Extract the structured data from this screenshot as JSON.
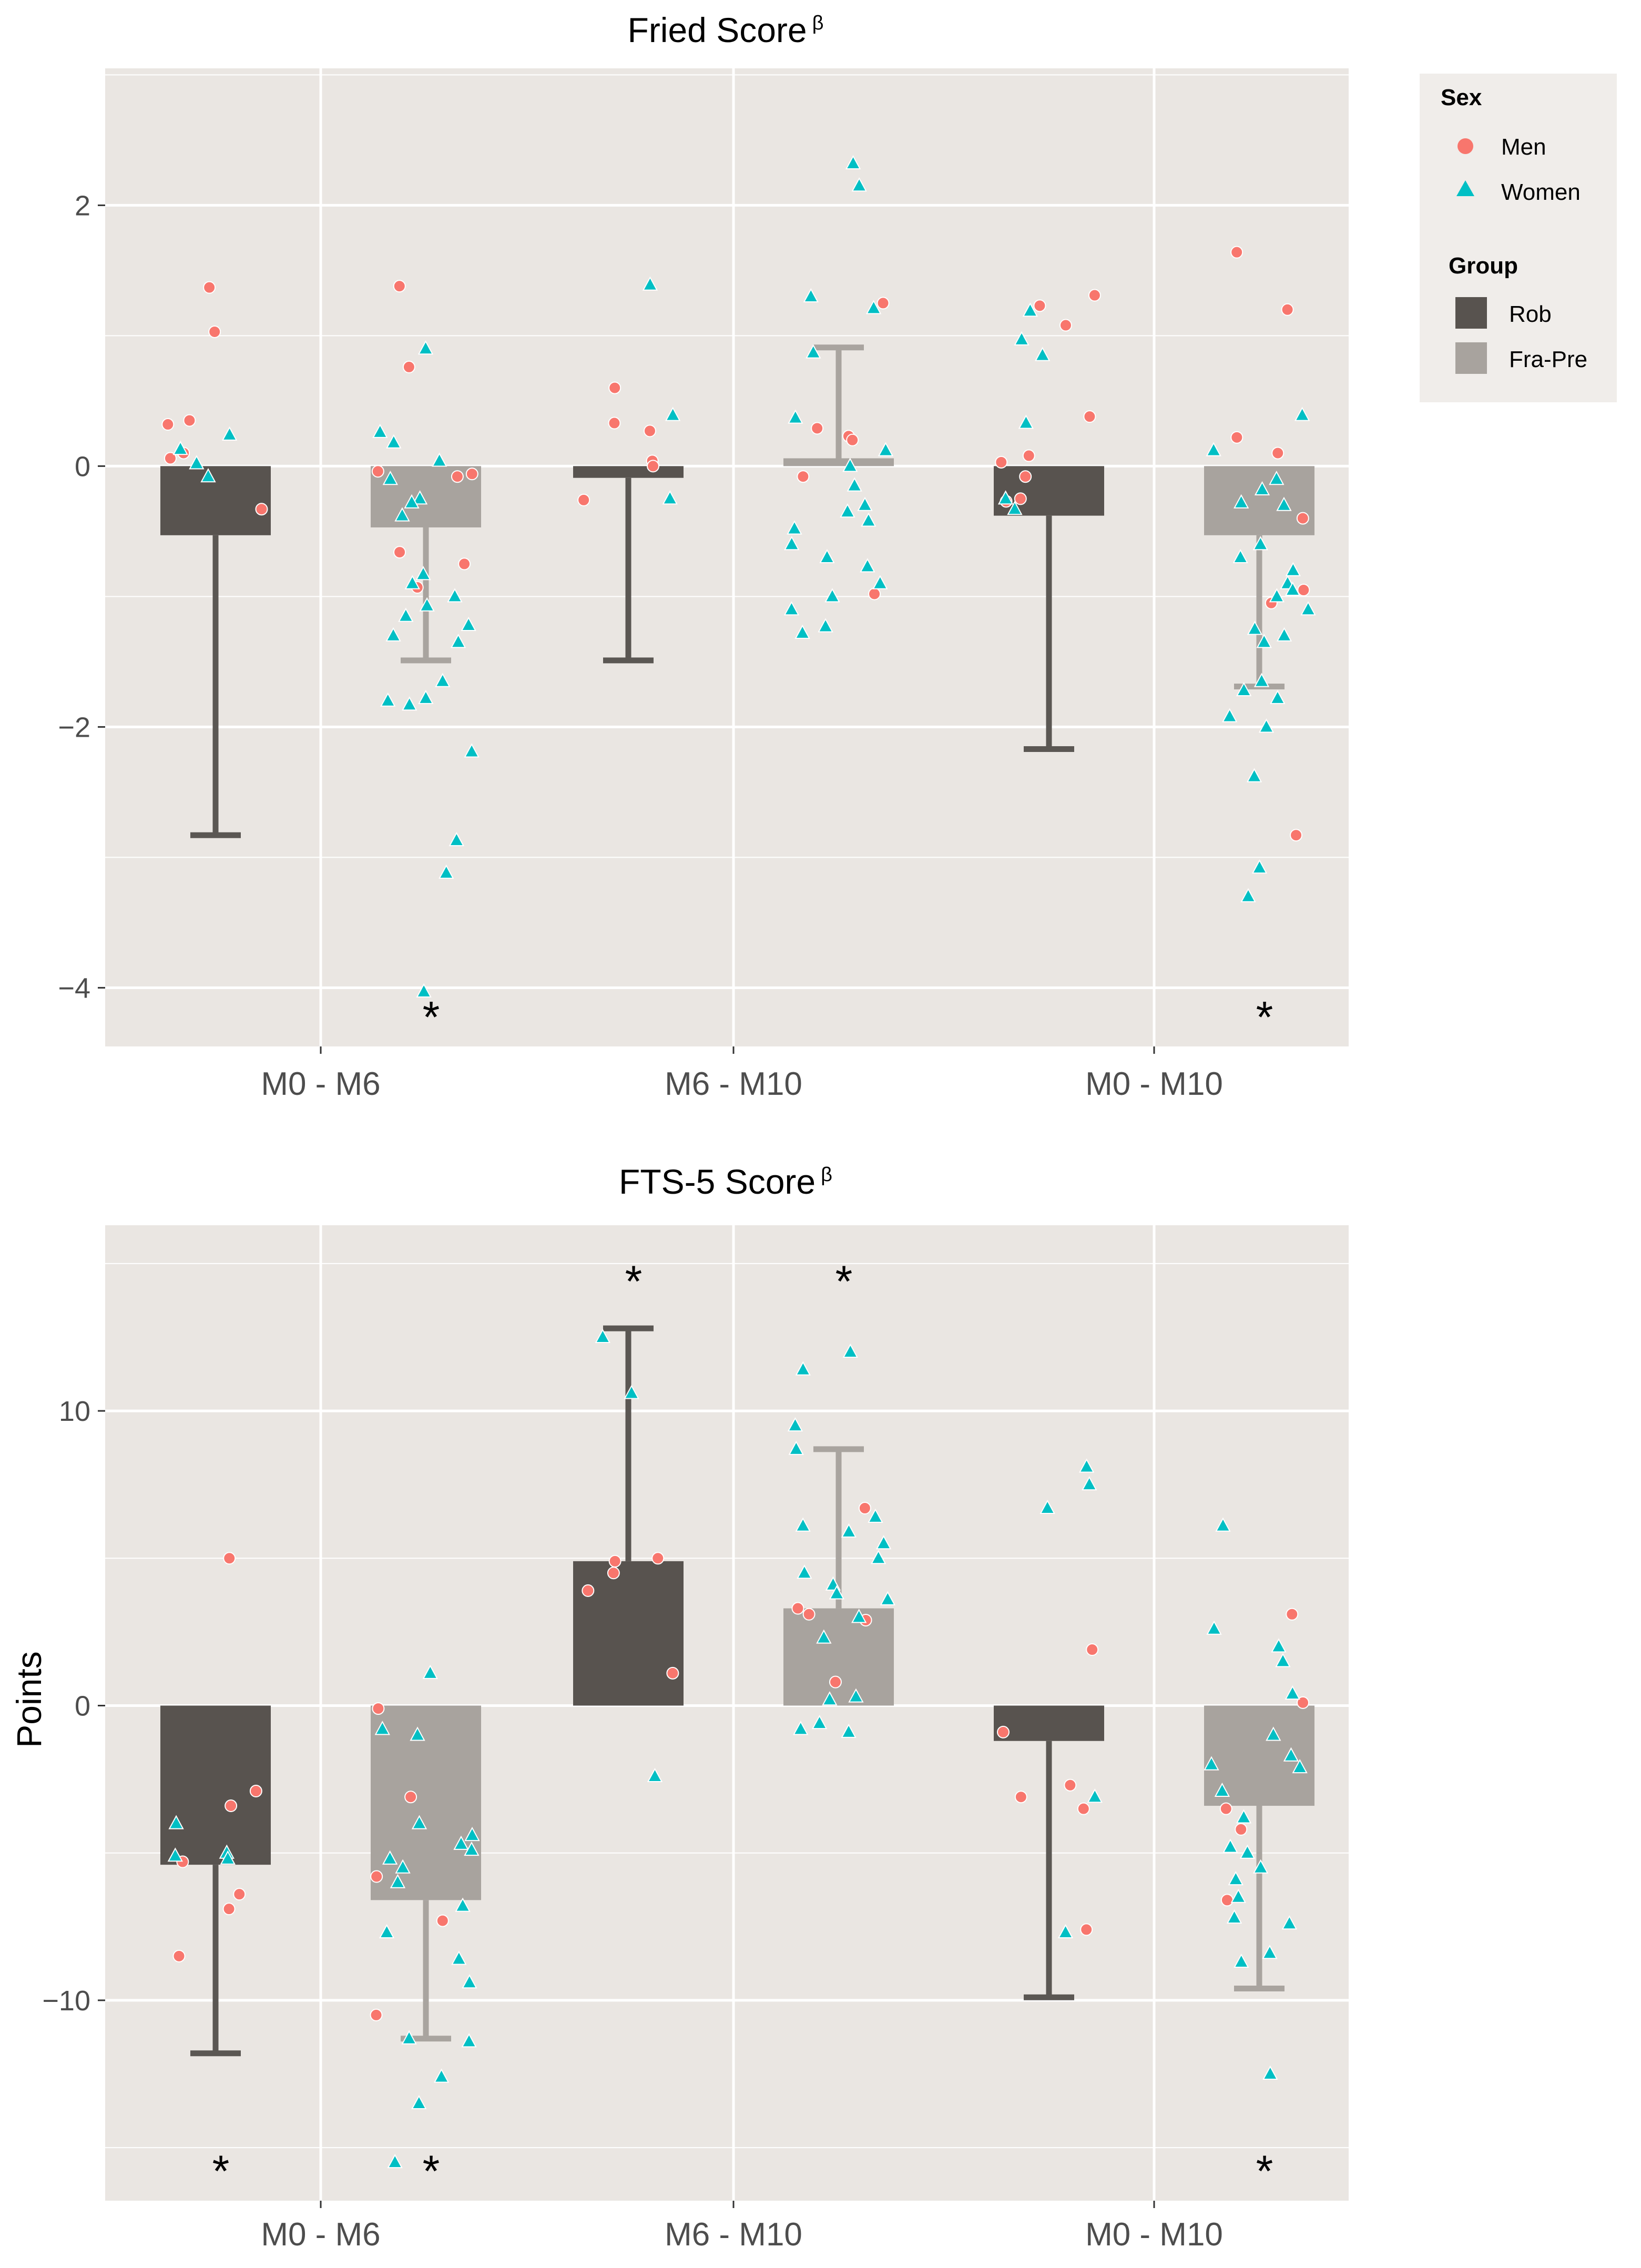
{
  "chart_data": [
    {
      "type": "bar",
      "title": "Fried Score",
      "title_superscript": "β",
      "xlabel": "",
      "ylabel": "",
      "ylim": [
        -4.45,
        3.05
      ],
      "yticks": [
        -4,
        -2,
        0,
        2
      ],
      "ytick_labels": [
        "−4",
        "−2",
        "0",
        "2"
      ],
      "categories": [
        "M0 - M6",
        "M6 - M10",
        "M0 - M10"
      ],
      "series": [
        {
          "name": "Rob",
          "values": [
            -0.53,
            -0.09,
            -0.38
          ],
          "error_ends": [
            -2.83,
            -1.49,
            -2.17
          ]
        },
        {
          "name": "Fra-Pre",
          "values": [
            -0.47,
            0.06,
            -0.53
          ],
          "error_ends": [
            -1.49,
            0.91,
            -1.69
          ]
        }
      ],
      "significance": [
        {
          "category": "M0 - M6",
          "group": "Fra-Pre",
          "mark": "*",
          "y": -4.18
        },
        {
          "category": "M0 - M10",
          "group": "Fra-Pre",
          "mark": "*",
          "y": -4.18
        }
      ],
      "points": [
        {
          "category": "M0 - M6",
          "group": "Rob",
          "men": [
            1.37,
            1.03,
            0.35,
            0.32,
            0.1,
            0.06,
            -0.33
          ],
          "women": [
            0.02,
            -0.08,
            0.24,
            0.13
          ]
        },
        {
          "category": "M0 - M6",
          "group": "Fra-Pre",
          "men": [
            1.38,
            0.76,
            -0.04,
            -0.06,
            -0.08,
            -0.66,
            -0.75,
            -0.93
          ],
          "women": [
            0.9,
            0.26,
            0.18,
            0.04,
            -0.1,
            -0.25,
            -0.38,
            -0.28,
            -0.83,
            -0.9,
            -1.0,
            -1.07,
            -1.15,
            -1.22,
            -1.3,
            -1.35,
            -1.65,
            -1.78,
            -1.8,
            -1.83,
            -2.19,
            -2.87,
            -3.12,
            -4.03
          ]
        },
        {
          "category": "M6 - M10",
          "group": "Rob",
          "men": [
            0.6,
            0.33,
            0.27,
            0.04,
            0.0,
            -0.26
          ],
          "women": [
            1.39,
            0.39,
            -0.25
          ]
        },
        {
          "category": "M6 - M10",
          "group": "Fra-Pre",
          "men": [
            1.25,
            0.29,
            0.23,
            0.2,
            -0.08,
            -0.98
          ],
          "women": [
            2.32,
            2.15,
            1.3,
            1.21,
            0.87,
            0.37,
            0.12,
            0.0,
            -0.15,
            -0.3,
            -0.35,
            -0.42,
            -0.48,
            -0.6,
            -0.7,
            -0.77,
            -0.9,
            -1.0,
            -1.1,
            -1.23,
            -1.28
          ]
        },
        {
          "category": "M0 - M10",
          "group": "Rob",
          "men": [
            1.31,
            1.23,
            1.08,
            0.38,
            0.08,
            0.03,
            -0.08,
            -0.25,
            -0.27
          ],
          "women": [
            1.19,
            0.97,
            0.85,
            0.33,
            -0.25,
            -0.33
          ]
        },
        {
          "category": "M0 - M10",
          "group": "Fra-Pre",
          "men": [
            1.64,
            1.2,
            0.22,
            0.1,
            -0.4,
            -0.95,
            -1.05,
            -2.83
          ],
          "women": [
            0.39,
            0.12,
            -0.1,
            -0.18,
            -0.28,
            -0.3,
            -0.6,
            -0.7,
            -0.8,
            -0.9,
            -0.95,
            -1.0,
            -1.1,
            -1.25,
            -1.3,
            -1.35,
            -1.65,
            -1.72,
            -1.78,
            -1.92,
            -2.0,
            -2.38,
            -3.08,
            -3.3
          ]
        }
      ]
    },
    {
      "type": "bar",
      "title": "FTS-5 Score",
      "title_superscript": "β",
      "xlabel": "",
      "ylabel": "Points",
      "ylim": [
        -16.8,
        16.3
      ],
      "yticks": [
        -10,
        0,
        10
      ],
      "ytick_labels": [
        "−10",
        "0",
        "10"
      ],
      "categories": [
        "M0 - M6",
        "M6 - M10",
        "M0 - M10"
      ],
      "series": [
        {
          "name": "Rob",
          "values": [
            -5.4,
            4.9,
            -1.2
          ],
          "error_ends": [
            -11.8,
            12.8,
            -9.9
          ]
        },
        {
          "name": "Fra-Pre",
          "values": [
            -6.6,
            3.3,
            -3.4
          ],
          "error_ends": [
            -11.3,
            8.7,
            -9.6
          ]
        }
      ],
      "significance": [
        {
          "category": "M0 - M6",
          "group": "Rob",
          "mark": "*",
          "y": -15.6
        },
        {
          "category": "M0 - M6",
          "group": "Fra-Pre",
          "mark": "*",
          "y": -15.6
        },
        {
          "category": "M6 - M10",
          "group": "Rob",
          "mark": "*",
          "y": 14.6
        },
        {
          "category": "M6 - M10",
          "group": "Fra-Pre",
          "mark": "*",
          "y": 14.6
        },
        {
          "category": "M0 - M10",
          "group": "Fra-Pre",
          "mark": "*",
          "y": -15.6
        }
      ],
      "points": [
        {
          "category": "M0 - M6",
          "group": "Rob",
          "men": [
            5.0,
            -2.9,
            -3.4,
            -5.3,
            -6.4,
            -6.9,
            -8.5
          ],
          "women": [
            -4.0,
            -5.0,
            -5.1,
            -5.2
          ]
        },
        {
          "category": "M0 - M6",
          "group": "Fra-Pre",
          "men": [
            -0.1,
            -3.1,
            -5.8,
            -7.3,
            -10.5
          ],
          "women": [
            1.1,
            -0.8,
            -1.0,
            -4.0,
            -4.4,
            -4.7,
            -4.9,
            -5.2,
            -5.5,
            -6.0,
            -6.8,
            -7.7,
            -8.6,
            -9.4,
            -11.3,
            -11.4,
            -12.6,
            -13.5,
            -15.5
          ]
        },
        {
          "category": "M6 - M10",
          "group": "Rob",
          "men": [
            5.0,
            4.9,
            4.5,
            3.9,
            1.1
          ],
          "women": [
            12.5,
            10.6,
            -2.4
          ]
        },
        {
          "category": "M6 - M10",
          "group": "Fra-Pre",
          "men": [
            6.7,
            3.3,
            3.1,
            2.9,
            0.8
          ],
          "women": [
            12.0,
            11.4,
            9.5,
            8.7,
            6.4,
            6.1,
            5.9,
            5.5,
            5.0,
            4.5,
            4.1,
            3.8,
            3.6,
            3.0,
            2.3,
            0.3,
            0.2,
            -0.6,
            -0.8,
            -0.9
          ]
        },
        {
          "category": "M0 - M10",
          "group": "Rob",
          "men": [
            1.9,
            -0.9,
            -2.7,
            -3.1,
            -3.5,
            -7.6
          ],
          "women": [
            8.1,
            7.5,
            6.7,
            -3.1,
            -7.7
          ]
        },
        {
          "category": "M0 - M10",
          "group": "Fra-Pre",
          "men": [
            3.1,
            0.1,
            -3.5,
            -4.2,
            -6.6
          ],
          "women": [
            6.1,
            2.6,
            2.0,
            1.5,
            0.4,
            -1.0,
            -1.7,
            -2.0,
            -2.1,
            -2.9,
            -3.8,
            -4.8,
            -5.0,
            -5.5,
            -5.9,
            -6.5,
            -7.2,
            -7.4,
            -8.4,
            -8.7,
            -12.5
          ]
        }
      ]
    }
  ],
  "legend": {
    "sex_title": "Sex",
    "sex_items": [
      {
        "label": "Men",
        "color": "#F8766D",
        "shape": "circle"
      },
      {
        "label": "Women",
        "color": "#00BFC4",
        "shape": "triangle"
      }
    ],
    "group_title": "Group",
    "group_items": [
      {
        "label": "Rob",
        "color": "#58534F"
      },
      {
        "label": "Fra-Pre",
        "color": "#A8A39E"
      }
    ]
  },
  "colors": {
    "panel_bg": "#EAE6E2",
    "grid": "#FFFFFF",
    "rob": "#58534F",
    "fra_pre": "#A8A39E",
    "men": "#F8766D",
    "women": "#00BFC4",
    "legend_bg": "#F0EDEA"
  }
}
